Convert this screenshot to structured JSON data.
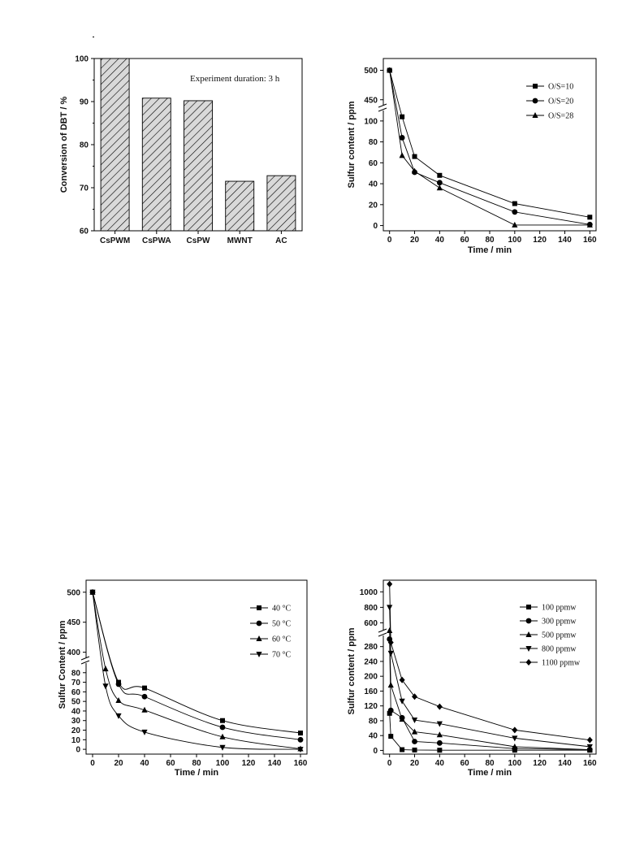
{
  "chart_data": [
    {
      "type": "bar",
      "categories": [
        "CsPWM",
        "CsPWA",
        "CsPW",
        "MWNT",
        "AC"
      ],
      "values": [
        100,
        90.8,
        90.2,
        71.5,
        72.8
      ],
      "xlabel": "",
      "ylabel": "Conversion of DBT / %",
      "ylim": [
        60,
        100
      ],
      "yticks": [
        "60",
        "70",
        "80",
        "90",
        "100"
      ],
      "annotation": "Experiment duration: 3 h",
      "bar_pattern": "diagonal-hatch",
      "bar_fill_color": "#d9d9d9"
    },
    {
      "type": "line",
      "xlabel": "Time / min",
      "ylabel": "Sulfur content / ppm",
      "xlim": [
        -5,
        165
      ],
      "xticks": [
        "0",
        "20",
        "40",
        "60",
        "80",
        "100",
        "120",
        "140",
        "160"
      ],
      "y_axis_break": true,
      "ylim_lower": [
        -5,
        110
      ],
      "yticks_lower": [
        "0",
        "20",
        "40",
        "60",
        "80",
        "100"
      ],
      "ylim_upper": [
        440,
        520
      ],
      "yticks_upper": [
        "450",
        "500"
      ],
      "legend_position": "top-right",
      "series": [
        {
          "name": "O/S=10",
          "marker": "square",
          "x": [
            0,
            10,
            20,
            40,
            100,
            160
          ],
          "y": [
            500,
            104,
            66,
            48,
            21,
            8
          ]
        },
        {
          "name": "O/S=20",
          "marker": "circle",
          "x": [
            0,
            10,
            20,
            40,
            100,
            160
          ],
          "y": [
            500,
            84,
            51,
            41,
            13,
            1
          ]
        },
        {
          "name": "O/S=28",
          "marker": "triangle-up",
          "x": [
            0,
            10,
            20,
            40,
            100,
            160
          ],
          "y": [
            500,
            67,
            52,
            36,
            0.5,
            0.5
          ]
        }
      ]
    },
    {
      "type": "line",
      "xlabel": "Time / min",
      "ylabel": "Sulfur Content / ppm",
      "xlim": [
        -5,
        165
      ],
      "xticks": [
        "0",
        "20",
        "40",
        "60",
        "80",
        "100",
        "120",
        "140",
        "160"
      ],
      "y_axis_break": true,
      "ylim_lower": [
        -5,
        90
      ],
      "yticks_lower": [
        "0",
        "10",
        "20",
        "30",
        "40",
        "50",
        "60",
        "70",
        "80"
      ],
      "ylim_upper": [
        390,
        520
      ],
      "yticks_upper": [
        "400",
        "450",
        "500"
      ],
      "legend_position": "top-right",
      "fitted_curves": true,
      "series": [
        {
          "name": "40 °C",
          "marker": "square",
          "x": [
            0,
            20,
            40,
            100,
            160
          ],
          "y": [
            500,
            70,
            64,
            30,
            17
          ]
        },
        {
          "name": "50 °C",
          "marker": "circle",
          "x": [
            0,
            20,
            40,
            100,
            160
          ],
          "y": [
            500,
            68,
            55,
            23,
            10
          ]
        },
        {
          "name": "60 °C",
          "marker": "triangle-up",
          "x": [
            0,
            10,
            20,
            40,
            100,
            160
          ],
          "y": [
            500,
            84,
            51,
            41,
            13,
            0.5
          ]
        },
        {
          "name": "70 °C",
          "marker": "triangle-down",
          "x": [
            0,
            10,
            20,
            40,
            100,
            160
          ],
          "y": [
            500,
            66,
            35,
            18,
            2,
            0
          ]
        }
      ]
    },
    {
      "type": "line",
      "xlabel": "Time / min",
      "ylabel": "Sulfur content / ppm",
      "xlim": [
        -5,
        165
      ],
      "xticks": [
        "0",
        "20",
        "40",
        "60",
        "80",
        "100",
        "120",
        "140",
        "160"
      ],
      "y_axis_break": true,
      "ylim_lower": [
        -10,
        310
      ],
      "yticks_lower": [
        "0",
        "40",
        "80",
        "120",
        "160",
        "200",
        "240",
        "280"
      ],
      "ylim_upper": [
        500,
        1150
      ],
      "yticks_upper": [
        "600",
        "800",
        "1000"
      ],
      "legend_position": "top-right",
      "series": [
        {
          "name": "100 ppmw",
          "marker": "square",
          "x": [
            0,
            1,
            10,
            20,
            40,
            100,
            160
          ],
          "y": [
            100,
            38,
            2,
            1,
            0.5,
            0.5,
            0.5
          ]
        },
        {
          "name": "300 ppmw",
          "marker": "circle",
          "x": [
            0,
            1,
            10,
            20,
            40,
            100,
            160
          ],
          "y": [
            300,
            108,
            88,
            24,
            20,
            5,
            2
          ]
        },
        {
          "name": "500 ppmw",
          "marker": "triangle-up",
          "x": [
            0,
            1,
            10,
            20,
            40,
            100,
            160
          ],
          "y": [
            500,
            176,
            84,
            50,
            42,
            10,
            2
          ]
        },
        {
          "name": "800 ppmw",
          "marker": "triangle-down",
          "x": [
            0,
            1,
            10,
            20,
            40,
            100,
            160
          ],
          "y": [
            800,
            262,
            133,
            82,
            72,
            33,
            10
          ]
        },
        {
          "name": "1100 ppmw",
          "marker": "diamond",
          "x": [
            0,
            1,
            10,
            20,
            40,
            100,
            160
          ],
          "y": [
            1100,
            291,
            190,
            145,
            118,
            55,
            28
          ]
        }
      ]
    }
  ]
}
